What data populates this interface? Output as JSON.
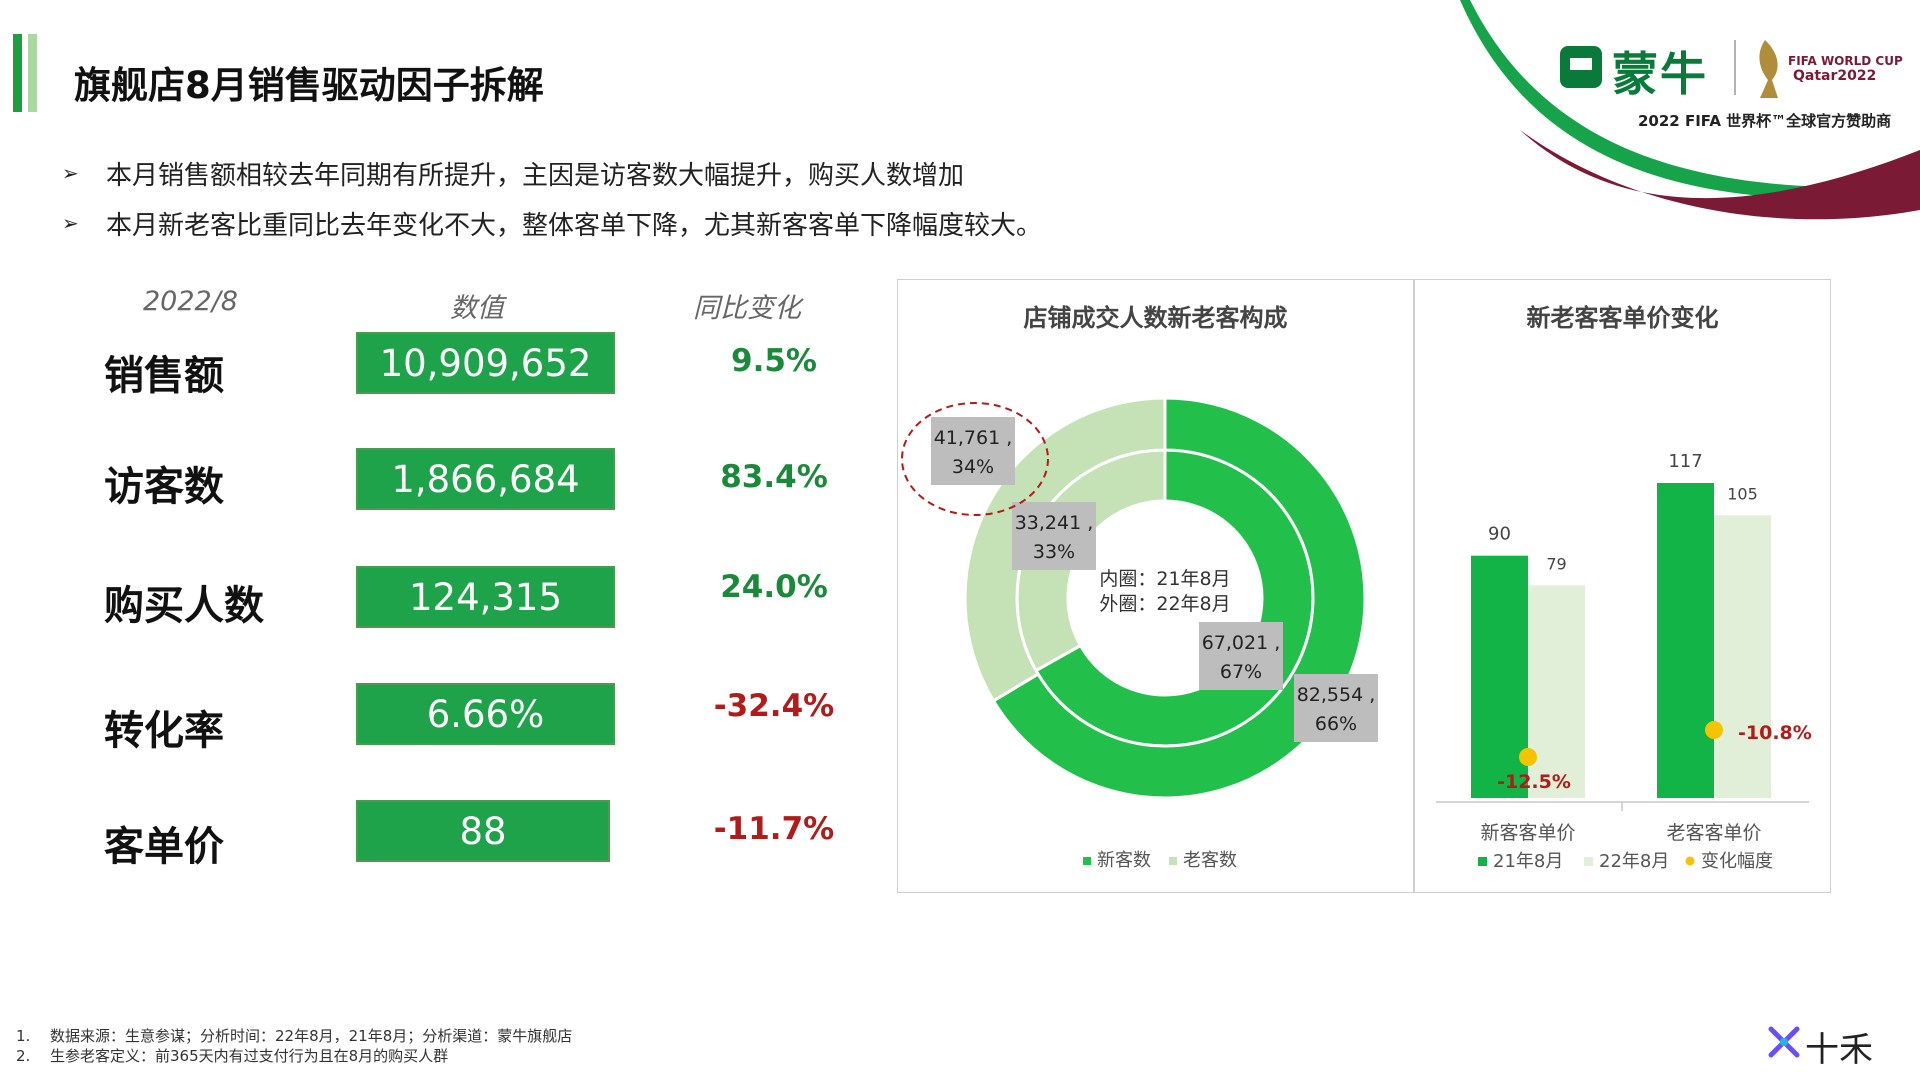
{
  "header": {
    "title": "旗舰店8月销售驱动因子拆解",
    "bullets": [
      "本月销售额相较去年同期有所提升，主因是访客数大幅提升，购买人数增加",
      "本月新老客比重同比去年变化不大，整体客单下降，尤其新客客单下降幅度较大。"
    ]
  },
  "logo": {
    "brand": "蒙牛",
    "event_line1": "FIFA WORLD CUP",
    "event_line2": "Qatar2022",
    "sponsor": "2022 FIFA 世界杯™全球官方赞助商",
    "colors": {
      "green": "#16a34a",
      "maroon": "#7a1a35"
    }
  },
  "kpi_table": {
    "headers": {
      "period": "2022/8",
      "value": "数值",
      "change": "同比变化"
    },
    "rows": [
      {
        "label": "销售额",
        "value": "10,909,652",
        "change": "9.5%",
        "change_color": "#1a8a3a"
      },
      {
        "label": "访客数",
        "value": "1,866,684",
        "change": "83.4%",
        "change_color": "#1a8a3a"
      },
      {
        "label": "购买人数",
        "value": "124,315",
        "change": "24.0%",
        "change_color": "#1a8a3a"
      },
      {
        "label": "转化率",
        "value": "6.66%",
        "change": "-32.4%",
        "change_color": "#b31b1b"
      },
      {
        "label": "客单价",
        "value": "88",
        "change": "-11.7%",
        "change_color": "#b31b1b"
      }
    ]
  },
  "chart_data": [
    {
      "type": "pie",
      "title": "店铺成交人数新老客构成",
      "center_text": [
        "内圈：21年8月",
        "外圈：22年8月"
      ],
      "legend": [
        "新客数",
        "老客数"
      ],
      "colors": [
        "#22c04a",
        "#c4e2b6"
      ],
      "rings": [
        {
          "ring": "inner",
          "slices": [
            {
              "name": "新客数",
              "value": 67021,
              "label": "67,021 ,",
              "percent": "67%"
            },
            {
              "name": "老客数",
              "value": 33241,
              "label": "33,241 ,",
              "percent": "33%"
            }
          ]
        },
        {
          "ring": "outer",
          "slices": [
            {
              "name": "新客数",
              "value": 82554,
              "label": "82,554 ,",
              "percent": "66%"
            },
            {
              "name": "老客数",
              "value": 41761,
              "label": "41,761 ,",
              "percent": "34%"
            }
          ]
        }
      ]
    },
    {
      "type": "bar",
      "title": "新老客客单价变化",
      "categories": [
        "新客客单价",
        "老客客单价"
      ],
      "series": [
        {
          "name": "21年8月",
          "values": [
            90,
            117
          ],
          "color": "#12b347"
        },
        {
          "name": "22年8月",
          "values": [
            79,
            105
          ],
          "color": "#e1efd8"
        }
      ],
      "change_series": {
        "name": "变化幅度",
        "values": [
          "-12.5%",
          "-10.8%"
        ],
        "color": "#f5c400",
        "label_color": "#b31b1b"
      },
      "legend": [
        "21年8月",
        "22年8月",
        "变化幅度"
      ],
      "ylim": [
        0,
        130
      ]
    }
  ],
  "footnotes": [
    {
      "num": "1.",
      "text": "数据来源：生意参谋；分析时间：22年8月，21年8月；分析渠道：蒙牛旗舰店"
    },
    {
      "num": "2.",
      "text": "生参老客定义：前365天内有过支付行为且在8月的购买人群"
    }
  ],
  "bottom_brand": "十禾"
}
